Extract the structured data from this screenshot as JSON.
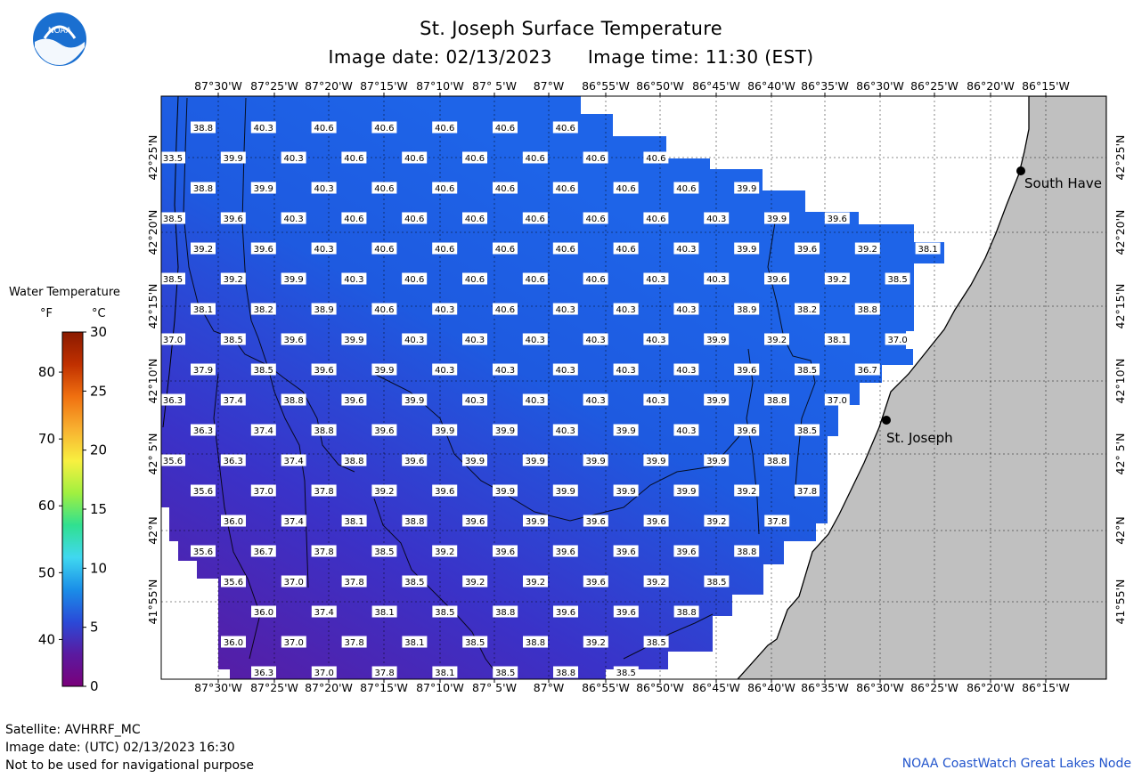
{
  "title": "St. Joseph Surface Temperature",
  "image_date_label": "Image date: 02/13/2023",
  "image_time_label": "Image time: 11:30 (EST)",
  "logo_text": "NOAA",
  "legend": {
    "title": "Water Temperature",
    "unit_f": "°F",
    "unit_c": "°C",
    "f_ticks": [
      "80",
      "70",
      "60",
      "50",
      "40"
    ],
    "c_ticks": [
      "30",
      "25",
      "20",
      "15",
      "10",
      "5",
      "0"
    ],
    "colors": [
      "#7a007a",
      "#5a1aa0",
      "#2a4ad8",
      "#1a8ee8",
      "#40d8f0",
      "#30e090",
      "#a0f040",
      "#f8f040",
      "#f8b030",
      "#f07010",
      "#c03000",
      "#8a1a00"
    ]
  },
  "lon_labels": [
    "87°30'W",
    "87°25'W",
    "87°20'W",
    "87°15'W",
    "87°10'W",
    "87° 5'W",
    "87°W",
    "86°55'W",
    "86°50'W",
    "86°45'W",
    "86°40'W",
    "86°35'W",
    "86°30'W",
    "86°25'W",
    "86°20'W",
    "86°15'W"
  ],
  "lat_labels": [
    "42°25'N",
    "42°20'N",
    "42°15'N",
    "42°10'N",
    "42° 5'N",
    "42°N",
    "41°55'N"
  ],
  "places": [
    {
      "name": "South Have"
    },
    {
      "name": "St. Joseph"
    }
  ],
  "temperature_grid": [
    [
      "38.8",
      "40.3",
      "40.6",
      "40.6",
      "40.6",
      "40.6",
      "40.6"
    ],
    [
      "33.5",
      "39.9",
      "40.3",
      "40.6",
      "40.6",
      "40.6",
      "40.6",
      "40.6",
      "40.6"
    ],
    [
      "38.8",
      "39.9",
      "40.3",
      "40.6",
      "40.6",
      "40.6",
      "40.6",
      "40.6",
      "40.6",
      "39.9"
    ],
    [
      "38.5",
      "39.6",
      "40.3",
      "40.6",
      "40.6",
      "40.6",
      "40.6",
      "40.6",
      "40.6",
      "40.3",
      "39.9",
      "39.6"
    ],
    [
      "39.2",
      "39.6",
      "40.3",
      "40.6",
      "40.6",
      "40.6",
      "40.6",
      "40.6",
      "40.3",
      "39.9",
      "39.6",
      "39.2",
      "38.1"
    ],
    [
      "38.5",
      "39.2",
      "39.9",
      "40.3",
      "40.6",
      "40.6",
      "40.6",
      "40.6",
      "40.3",
      "40.3",
      "39.6",
      "39.2",
      "38.5"
    ],
    [
      "38.1",
      "38.2",
      "38.9",
      "40.6",
      "40.3",
      "40.6",
      "40.3",
      "40.3",
      "40.3",
      "38.9",
      "38.2",
      "38.8"
    ],
    [
      "37.0",
      "38.5",
      "39.6",
      "39.9",
      "40.3",
      "40.3",
      "40.3",
      "40.3",
      "40.3",
      "39.9",
      "39.2",
      "38.1",
      "37.0"
    ],
    [
      "37.9",
      "38.5",
      "39.6",
      "39.9",
      "40.3",
      "40.3",
      "40.3",
      "40.3",
      "40.3",
      "39.6",
      "38.5",
      "36.7"
    ],
    [
      "36.3",
      "37.4",
      "38.8",
      "39.6",
      "39.9",
      "40.3",
      "40.3",
      "40.3",
      "40.3",
      "39.9",
      "38.8",
      "37.0"
    ],
    [
      "36.3",
      "37.4",
      "38.8",
      "39.6",
      "39.9",
      "39.9",
      "40.3",
      "39.9",
      "40.3",
      "39.6",
      "38.5"
    ],
    [
      "35.6",
      "36.3",
      "37.4",
      "38.8",
      "39.6",
      "39.9",
      "39.9",
      "39.9",
      "39.9",
      "39.9",
      "38.8"
    ],
    [
      "35.6",
      "37.0",
      "37.8",
      "39.2",
      "39.6",
      "39.9",
      "39.9",
      "39.9",
      "39.9",
      "39.2",
      "37.8"
    ],
    [
      "36.0",
      "37.4",
      "38.1",
      "38.8",
      "39.6",
      "39.9",
      "39.6",
      "39.6",
      "39.2",
      "37.8"
    ],
    [
      "35.6",
      "36.7",
      "37.8",
      "38.5",
      "39.2",
      "39.6",
      "39.6",
      "39.6",
      "39.6",
      "38.8"
    ],
    [
      "35.6",
      "37.0",
      "37.8",
      "38.5",
      "39.2",
      "39.2",
      "39.6",
      "39.2",
      "38.5"
    ],
    [
      "36.0",
      "37.4",
      "38.1",
      "38.5",
      "38.8",
      "39.6",
      "39.6",
      "38.8"
    ],
    [
      "36.0",
      "37.0",
      "37.8",
      "38.1",
      "38.5",
      "38.8",
      "39.2",
      "38.5"
    ],
    [
      "36.3",
      "37.0",
      "37.8",
      "38.1",
      "38.5",
      "38.8",
      "38.5"
    ]
  ],
  "footer": {
    "satellite": "Satellite: AVHRRF_MC",
    "utc_date": "Image date: (UTC) 02/13/2023  16:30",
    "disclaimer": "Not to be used for navigational purpose",
    "credit": "NOAA CoastWatch Great Lakes Node"
  }
}
